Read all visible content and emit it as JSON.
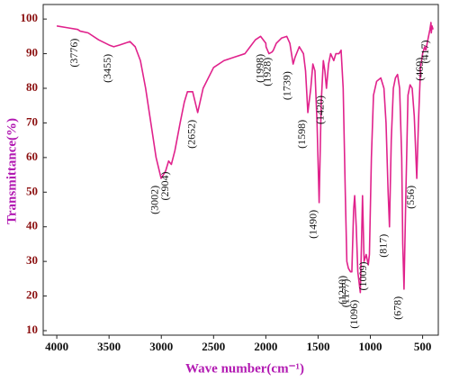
{
  "chart_data": {
    "type": "line",
    "xlabel": "Wave number(cm⁻¹)",
    "ylabel": "Transmittance(%)",
    "color": "#e0228c",
    "xlim": [
      4130,
      350
    ],
    "ylim": [
      8.7,
      104.2
    ],
    "xticks": [
      4000,
      3500,
      3000,
      2500,
      2000,
      1500,
      1000,
      500
    ],
    "yticks": [
      10,
      20,
      30,
      40,
      50,
      60,
      70,
      80,
      90,
      100
    ],
    "x": [
      4000,
      3900,
      3800,
      3776,
      3700,
      3600,
      3500,
      3455,
      3400,
      3300,
      3250,
      3200,
      3150,
      3100,
      3050,
      3002,
      2960,
      2930,
      2904,
      2870,
      2820,
      2780,
      2750,
      2700,
      2652,
      2600,
      2500,
      2400,
      2300,
      2200,
      2150,
      2100,
      2050,
      2000,
      1998,
      1970,
      1940,
      1928,
      1900,
      1850,
      1800,
      1770,
      1739,
      1720,
      1680,
      1640,
      1620,
      1598,
      1570,
      1550,
      1530,
      1510,
      1490,
      1470,
      1450,
      1435,
      1420,
      1400,
      1380,
      1350,
      1330,
      1300,
      1280,
      1260,
      1240,
      1225,
      1210,
      1190,
      1177,
      1160,
      1150,
      1135,
      1120,
      1096,
      1085,
      1075,
      1060,
      1040,
      1020,
      1009,
      990,
      970,
      940,
      900,
      870,
      850,
      830,
      817,
      800,
      780,
      760,
      740,
      720,
      700,
      690,
      678,
      660,
      640,
      620,
      600,
      580,
      556,
      540,
      520,
      500,
      480,
      469,
      450,
      430,
      420,
      417,
      410,
      400
    ],
    "values": [
      98,
      97.5,
      97,
      96.5,
      96,
      94,
      92.5,
      92,
      92.5,
      93.5,
      92,
      88,
      80,
      70,
      60,
      54,
      56,
      59,
      58,
      62,
      70,
      76,
      79,
      79,
      73,
      80,
      86,
      88,
      89,
      90,
      92,
      94,
      95,
      93,
      92,
      90,
      90.5,
      91,
      93,
      94.5,
      95,
      93,
      87,
      89,
      92,
      90,
      85,
      73,
      80,
      87,
      85,
      70,
      47,
      76,
      88,
      85,
      80,
      87,
      90,
      88,
      90,
      90,
      91,
      80,
      50,
      30,
      28,
      27,
      27,
      45,
      49,
      40,
      27,
      21,
      35,
      49,
      30,
      32,
      29,
      32,
      60,
      78,
      82,
      83,
      80,
      70,
      50,
      40,
      65,
      80,
      83,
      84,
      80,
      60,
      35,
      22,
      50,
      78,
      81,
      80,
      72,
      54,
      70,
      86,
      90,
      92,
      91,
      94,
      97,
      99,
      96,
      98,
      97
    ],
    "annotations": [
      {
        "x": 3776,
        "label": "(3776)"
      },
      {
        "x": 3455,
        "label": "(3455)"
      },
      {
        "x": 3002,
        "label": "(3002)"
      },
      {
        "x": 2904,
        "label": "(2904)"
      },
      {
        "x": 2652,
        "label": "(2652)"
      },
      {
        "x": 1998,
        "label": "(1998)"
      },
      {
        "x": 1928,
        "label": "(1928)"
      },
      {
        "x": 1739,
        "label": "(1739)"
      },
      {
        "x": 1598,
        "label": "(1598)"
      },
      {
        "x": 1490,
        "label": "(1490)"
      },
      {
        "x": 1420,
        "label": "(1420)"
      },
      {
        "x": 1210,
        "label": "(1210)"
      },
      {
        "x": 1177,
        "label": "(1177)"
      },
      {
        "x": 1096,
        "label": "(1096)"
      },
      {
        "x": 1009,
        "label": "(1009)"
      },
      {
        "x": 817,
        "label": "(817)"
      },
      {
        "x": 678,
        "label": "(678)"
      },
      {
        "x": 556,
        "label": "(556)"
      },
      {
        "x": 469,
        "label": "(469)"
      },
      {
        "x": 417,
        "label": "(417)"
      }
    ]
  }
}
